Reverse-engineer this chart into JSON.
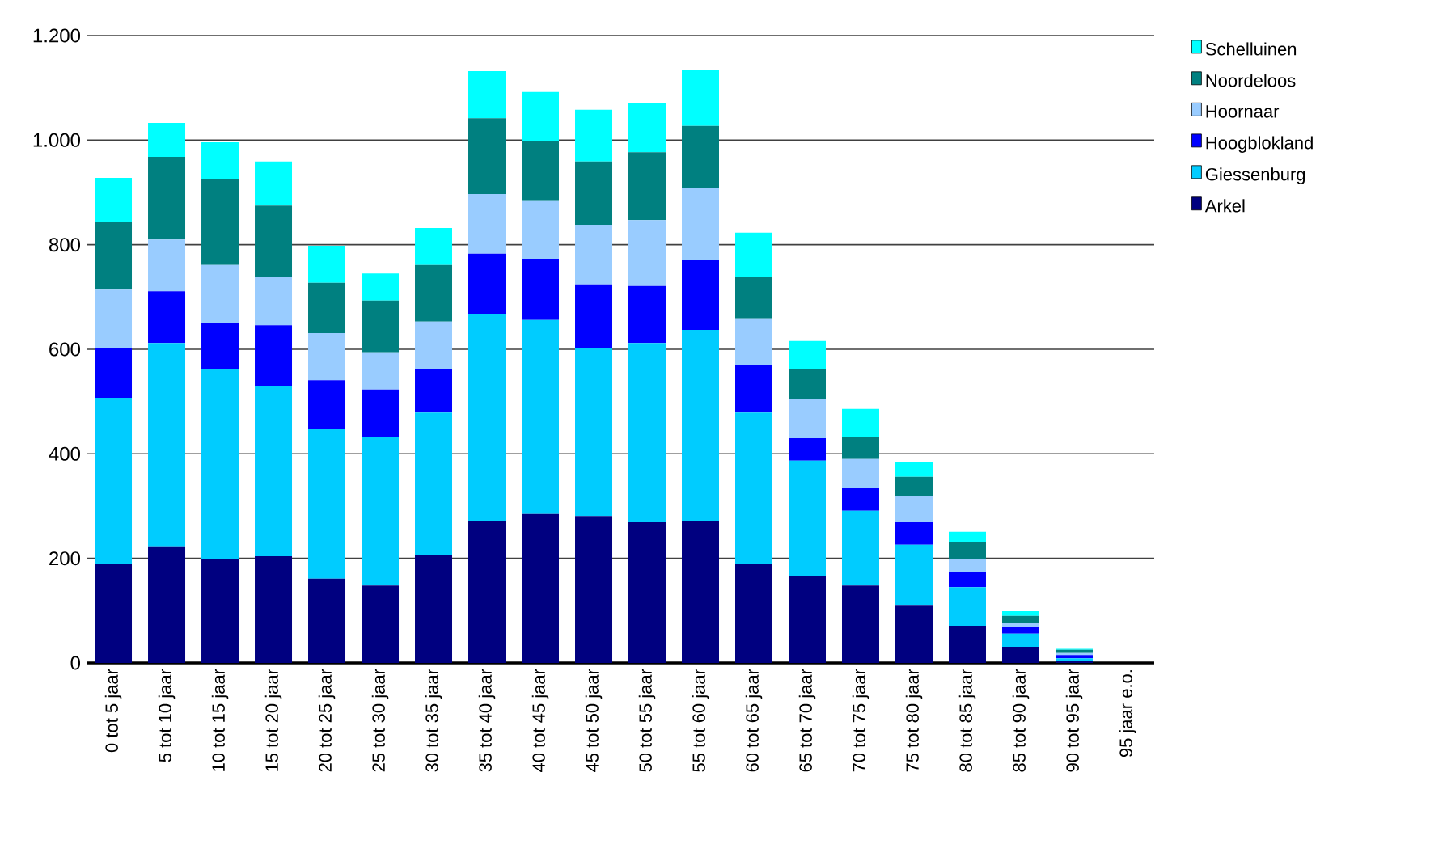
{
  "chart_data": {
    "type": "bar",
    "stacked": true,
    "categories": [
      "0 tot 5 jaar",
      "5 tot 10 jaar",
      "10 tot 15 jaar",
      "15 tot 20 jaar",
      "20 tot 25 jaar",
      "25 tot 30 jaar",
      "30 tot 35 jaar",
      "35 tot 40 jaar",
      "40 tot 45 jaar",
      "45 tot 50 jaar",
      "50 tot 55 jaar",
      "55 tot 60 jaar",
      "60 tot 65 jaar",
      "65 tot 70 jaar",
      "70 tot 75 jaar",
      "75 tot 80 jaar",
      "80 tot 85 jaar",
      "85 tot 90 jaar",
      "90 tot 95 jaar",
      "95 jaar e.o."
    ],
    "series": [
      {
        "name": "Arkel",
        "color": "#000080",
        "values": [
          189,
          223,
          198,
          204,
          161,
          148,
          207,
          272,
          285,
          281,
          269,
          272,
          189,
          167,
          148,
          111,
          71,
          31,
          3,
          0
        ]
      },
      {
        "name": "Giessenburg",
        "color": "#00ccff",
        "values": [
          318,
          389,
          365,
          325,
          287,
          285,
          272,
          396,
          371,
          322,
          343,
          365,
          290,
          220,
          143,
          115,
          74,
          25,
          6,
          0
        ]
      },
      {
        "name": "Hoogblokland",
        "color": "#0000ff",
        "values": [
          96,
          99,
          87,
          117,
          93,
          90,
          84,
          115,
          117,
          121,
          109,
          133,
          90,
          43,
          43,
          43,
          28,
          12,
          6,
          0
        ]
      },
      {
        "name": "Hoornaar",
        "color": "#99ccff",
        "values": [
          111,
          99,
          111,
          93,
          90,
          71,
          90,
          114,
          112,
          114,
          126,
          139,
          90,
          74,
          56,
          50,
          25,
          9,
          4,
          0
        ]
      },
      {
        "name": "Noordeloos",
        "color": "#008080",
        "values": [
          130,
          158,
          164,
          136,
          96,
          99,
          108,
          145,
          114,
          121,
          130,
          118,
          80,
          59,
          43,
          37,
          34,
          13,
          6,
          0
        ]
      },
      {
        "name": "Schelluinen",
        "color": "#00ffff",
        "values": [
          84,
          65,
          71,
          84,
          71,
          52,
          71,
          90,
          93,
          99,
          93,
          108,
          84,
          53,
          53,
          28,
          19,
          9,
          2,
          0
        ]
      }
    ],
    "ylim": [
      0,
      1200
    ],
    "yticks": [
      0,
      200,
      400,
      600,
      800,
      {
        "value": 1000,
        "label": "1.000"
      },
      {
        "value": 1200,
        "label": "1.200"
      }
    ],
    "grid": "y",
    "legend": "top right"
  }
}
